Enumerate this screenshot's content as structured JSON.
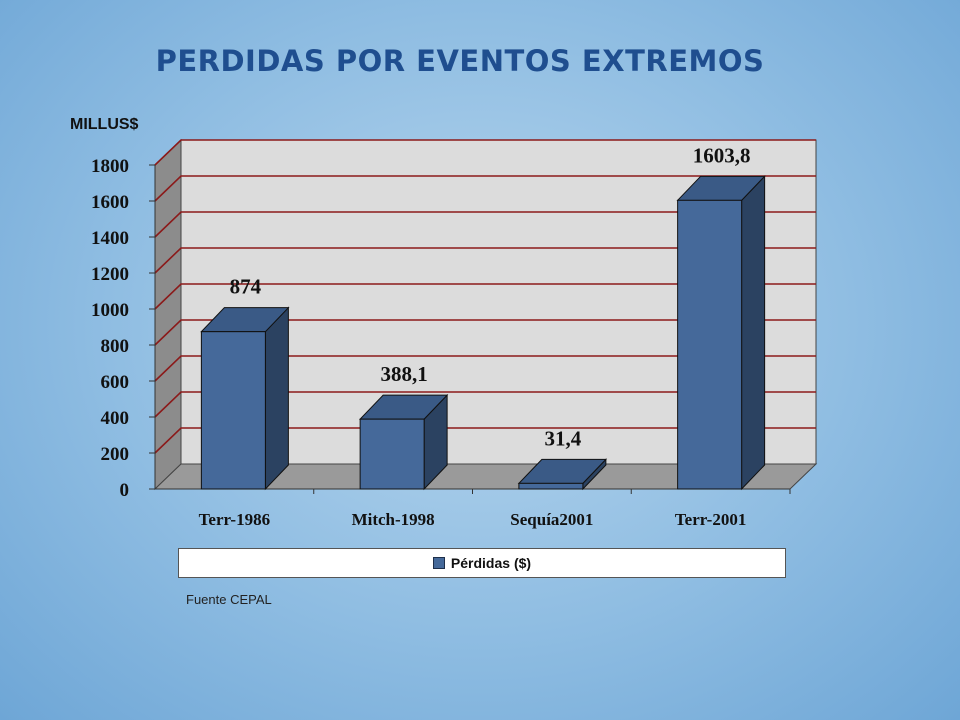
{
  "slide": {
    "title": "PERDIDAS  POR EVENTOS EXTREMOS",
    "source": "Fuente CEPAL"
  },
  "colors": {
    "bar_front": "#45699a",
    "bar_side": "#2b4261",
    "bar_top": "#3a5a86",
    "back_wall": "#dcdcdc",
    "side_wall": "#8c8c8c",
    "floor": "#9a9a9a",
    "grid": "#8b1a1a"
  },
  "chart_data": {
    "type": "bar",
    "title": "PERDIDAS  POR EVENTOS EXTREMOS",
    "ylabel": "MILLUS$",
    "xlabel": "",
    "categories": [
      "Terr-1986",
      "Mitch-1998",
      "Sequía2001",
      "Terr-2001"
    ],
    "series": [
      {
        "name": "Pérdidas ($)",
        "values": [
          874,
          388.1,
          31.4,
          1603.8
        ]
      }
    ],
    "data_labels": [
      "874",
      "388,1",
      "31,4",
      "1603,8"
    ],
    "ylim": [
      0,
      1800
    ],
    "yticks": [
      "0",
      "200",
      "400",
      "600",
      "800",
      "1000",
      "1200",
      "1400",
      "1600",
      "1800"
    ],
    "grid": true,
    "legend_position": "bottom",
    "style": "3d-column"
  }
}
